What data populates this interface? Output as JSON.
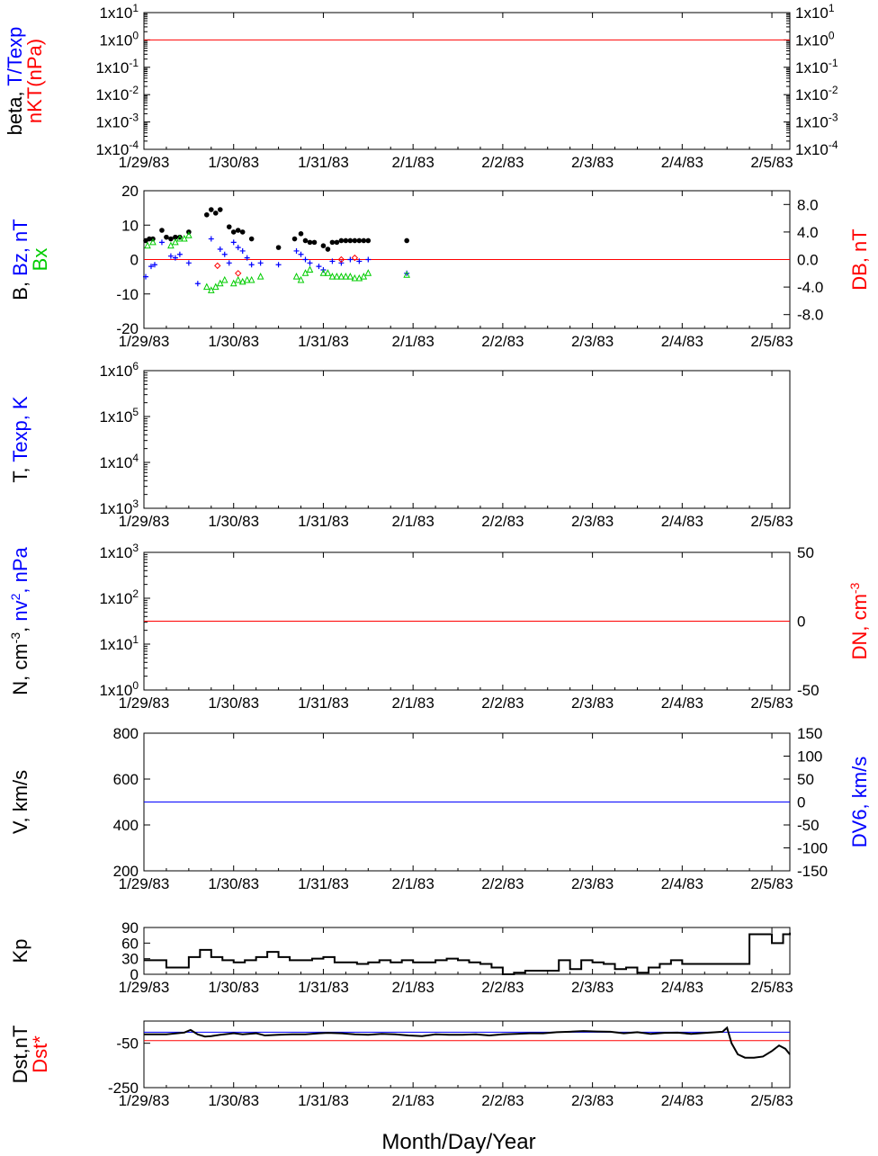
{
  "figure": {
    "xlabel": "Month/Day/Year"
  },
  "dates": [
    "1/29/83",
    "1/30/83",
    "1/31/83",
    "2/1/83",
    "2/2/83",
    "2/3/83",
    "2/4/83",
    "2/5/83"
  ],
  "colors": {
    "black": "#000000",
    "red": "#ff0000",
    "blue": "#0000ff",
    "green": "#00cc00"
  },
  "chart_data": [
    {
      "type": "line",
      "panel": "beta",
      "ylabel_parts": [
        "beta, ",
        "T/Texp"
      ],
      "ylabel2": "nKT(nPa)",
      "yscale": "log",
      "ylim": [
        0.0001,
        10
      ],
      "yticks": [
        "1x10-4",
        "1x10-3",
        "1x10-2",
        "1x10-1",
        "1x100",
        "1x101"
      ],
      "xlim": [
        0,
        7.2
      ],
      "series": [
        {
          "color": "red",
          "x": [
            0,
            7.2
          ],
          "y": [
            1,
            1
          ]
        }
      ]
    },
    {
      "type": "scatter",
      "panel": "magnetic field",
      "ylabel_parts": [
        "B, ",
        "Bz, nT"
      ],
      "ylabel2": "Bx",
      "right_label": "DB, nT",
      "ylim": [
        -20,
        20
      ],
      "yticks": [
        "-20",
        "-10",
        "0",
        "10",
        "20"
      ],
      "right_ylim": [
        -10,
        10
      ],
      "right_yticks": [
        "-8.0",
        "-4.0",
        "0.0",
        "4.0",
        "8.0"
      ],
      "xlim": [
        0,
        7.2
      ],
      "zero_line": {
        "color": "red",
        "value": 0
      },
      "series": [
        {
          "marker": "dot",
          "color": "black",
          "x": [
            0.02,
            0.06,
            0.1,
            0.2,
            0.25,
            0.3,
            0.35,
            0.4,
            0.5,
            0.7,
            0.75,
            0.8,
            0.85,
            0.95,
            1.0,
            1.05,
            1.1,
            1.2,
            1.5,
            1.68,
            1.75,
            1.8,
            1.85,
            1.9,
            2.0,
            2.05,
            2.1,
            2.15,
            2.2,
            2.25,
            2.3,
            2.35,
            2.4,
            2.45,
            2.5,
            2.93
          ],
          "y": [
            5.5,
            6,
            6,
            8.5,
            6.5,
            6,
            6.5,
            6.5,
            8,
            13,
            14.5,
            13.5,
            14.5,
            9.5,
            8,
            8.5,
            8,
            6,
            3.5,
            6,
            7.5,
            5.5,
            5,
            5,
            4,
            3,
            5,
            5,
            5.5,
            5.5,
            5.5,
            5.5,
            5.5,
            5.5,
            5.5,
            5.5
          ]
        },
        {
          "marker": "plus",
          "color": "blue",
          "x": [
            0.02,
            0.08,
            0.12,
            0.2,
            0.3,
            0.35,
            0.4,
            0.5,
            0.6,
            0.75,
            0.85,
            0.9,
            0.95,
            1.0,
            1.05,
            1.1,
            1.15,
            1.2,
            1.3,
            1.5,
            1.7,
            1.75,
            1.8,
            1.85,
            1.95,
            2.0,
            2.1,
            2.2,
            2.3,
            2.4,
            2.5,
            2.93
          ],
          "y": [
            -5,
            -2,
            -1.5,
            5,
            1,
            0.5,
            1.5,
            -1,
            -7,
            6,
            3,
            1.5,
            -1,
            5,
            3.5,
            2.5,
            0.5,
            -1.5,
            -1,
            -1.5,
            2.5,
            1.5,
            0,
            -1,
            -2,
            -3,
            -0.5,
            -1,
            0,
            -0.5,
            0,
            -4
          ]
        },
        {
          "marker": "triangle",
          "color": "green",
          "x": [
            0.04,
            0.1,
            0.3,
            0.35,
            0.4,
            0.45,
            0.5,
            0.7,
            0.75,
            0.8,
            0.85,
            0.9,
            1.0,
            1.05,
            1.1,
            1.15,
            1.2,
            1.3,
            1.7,
            1.75,
            1.8,
            1.85,
            2.0,
            2.05,
            2.1,
            2.15,
            2.2,
            2.25,
            2.3,
            2.35,
            2.4,
            2.45,
            2.5,
            2.93
          ],
          "y": [
            4,
            5,
            4,
            5,
            6,
            6,
            7,
            -8,
            -9,
            -8,
            -7,
            -6,
            -7,
            -6,
            -6.5,
            -6,
            -6,
            -5,
            -5,
            -6,
            -4,
            -3,
            -4,
            -4,
            -5,
            -5,
            -5,
            -5,
            -5,
            -5.5,
            -5.5,
            -5,
            -4,
            -4.5
          ]
        },
        {
          "marker": "diamond",
          "color": "red",
          "x": [
            0.82,
            1.05,
            2.2,
            2.35
          ],
          "y": [
            -1.8,
            -4,
            0,
            0.5
          ]
        }
      ]
    },
    {
      "type": "line",
      "panel": "temperature",
      "ylabel_parts": [
        "T, ",
        "Texp, K"
      ],
      "yscale": "log",
      "ylim": [
        1000,
        1000000
      ],
      "yticks": [
        "1x103",
        "1x104",
        "1x105",
        "1x106"
      ],
      "xlim": [
        0,
        7.2
      ],
      "series": []
    },
    {
      "type": "line",
      "panel": "density",
      "ylabel_parts": [
        "N, cm",
        "-3",
        ", ",
        "nv",
        "2",
        ", nPa"
      ],
      "right_label": "DN, cm-3",
      "yscale": "log",
      "ylim": [
        1,
        1000
      ],
      "yticks": [
        "1x100",
        "1x101",
        "1x102",
        "1x103"
      ],
      "right_ylim": [
        -50,
        50
      ],
      "right_yticks": [
        "-50",
        "0",
        "50"
      ],
      "xlim": [
        0,
        7.2
      ],
      "series": [
        {
          "color": "red",
          "axis": "right",
          "x": [
            0,
            7.2
          ],
          "y": [
            0,
            0
          ]
        }
      ]
    },
    {
      "type": "line",
      "panel": "velocity",
      "ylabel": "V, km/s",
      "right_label": "DV6, km/s",
      "ylim": [
        200,
        800
      ],
      "yticks": [
        "200",
        "400",
        "600",
        "800"
      ],
      "right_ylim": [
        -150,
        150
      ],
      "right_yticks": [
        "-150",
        "-100",
        "-50",
        "0",
        "50",
        "100",
        "150"
      ],
      "xlim": [
        0,
        7.2
      ],
      "series": [
        {
          "color": "blue",
          "axis": "right",
          "x": [
            0,
            7.2
          ],
          "y": [
            0,
            0
          ]
        }
      ]
    },
    {
      "type": "line",
      "panel": "Kp",
      "ylabel": "Kp",
      "ylim": [
        0,
        90
      ],
      "yticks": [
        "0",
        "30",
        "60",
        "90"
      ],
      "xlim": [
        0,
        7.2
      ],
      "series": [
        {
          "color": "black",
          "step": true,
          "x": [
            0,
            0.125,
            0.25,
            0.375,
            0.5,
            0.625,
            0.75,
            0.875,
            1.0,
            1.125,
            1.25,
            1.375,
            1.5,
            1.625,
            1.75,
            1.875,
            2.0,
            2.125,
            2.25,
            2.375,
            2.5,
            2.625,
            2.75,
            2.875,
            3.0,
            3.125,
            3.25,
            3.375,
            3.5,
            3.625,
            3.75,
            3.875,
            4.0,
            4.125,
            4.25,
            4.375,
            4.5,
            4.625,
            4.75,
            4.875,
            5.0,
            5.125,
            5.25,
            5.375,
            5.5,
            5.625,
            5.75,
            5.875,
            6.0,
            6.125,
            6.25,
            6.375,
            6.5,
            6.625,
            6.75,
            6.875,
            7.0,
            7.125,
            7.2
          ],
          "y": [
            27,
            27,
            13,
            13,
            33,
            47,
            33,
            27,
            23,
            27,
            33,
            43,
            33,
            27,
            27,
            30,
            33,
            23,
            23,
            20,
            23,
            27,
            23,
            27,
            23,
            23,
            27,
            30,
            27,
            23,
            20,
            13,
            0,
            3,
            7,
            7,
            7,
            27,
            10,
            27,
            23,
            20,
            10,
            13,
            3,
            13,
            20,
            27,
            20,
            20,
            20,
            20,
            20,
            20,
            77,
            77,
            60,
            77,
            80
          ]
        }
      ]
    },
    {
      "type": "line",
      "panel": "Dst",
      "ylabel": "Dst,nT",
      "ylabel2": "Dst*",
      "ylim": [
        -250,
        50
      ],
      "yticks": [
        "-250",
        "-50"
      ],
      "xlim": [
        0,
        7.2
      ],
      "series": [
        {
          "color": "blue",
          "x": [
            0,
            7.2
          ],
          "y": [
            0,
            0
          ]
        },
        {
          "color": "red",
          "x": [
            0,
            7.2
          ],
          "y": [
            -38,
            -38
          ]
        },
        {
          "color": "black",
          "x": [
            0,
            0.25,
            0.45,
            0.52,
            0.6,
            0.68,
            0.75,
            0.85,
            1.0,
            1.1,
            1.25,
            1.35,
            1.5,
            1.65,
            1.8,
            1.95,
            2.05,
            2.2,
            2.35,
            2.5,
            2.65,
            2.8,
            2.95,
            3.1,
            3.25,
            3.4,
            3.55,
            3.7,
            3.85,
            4.0,
            4.15,
            4.3,
            4.45,
            4.6,
            4.75,
            4.9,
            5.05,
            5.2,
            5.35,
            5.5,
            5.65,
            5.8,
            5.95,
            6.1,
            6.3,
            6.45,
            6.5,
            6.55,
            6.62,
            6.7,
            6.8,
            6.9,
            7.0,
            7.08,
            7.15,
            7.2
          ],
          "y": [
            -10,
            -10,
            -2,
            10,
            -10,
            -20,
            -18,
            -12,
            -5,
            -10,
            -5,
            -15,
            -12,
            -10,
            -10,
            -5,
            -3,
            -5,
            -10,
            -12,
            -8,
            -10,
            -15,
            -18,
            -10,
            -12,
            -12,
            -10,
            -15,
            -10,
            -8,
            -5,
            -5,
            0,
            2,
            5,
            3,
            2,
            -5,
            0,
            -8,
            -3,
            -2,
            -8,
            -2,
            2,
            20,
            -50,
            -100,
            -115,
            -115,
            -110,
            -85,
            -60,
            -75,
            -100
          ]
        }
      ]
    }
  ]
}
